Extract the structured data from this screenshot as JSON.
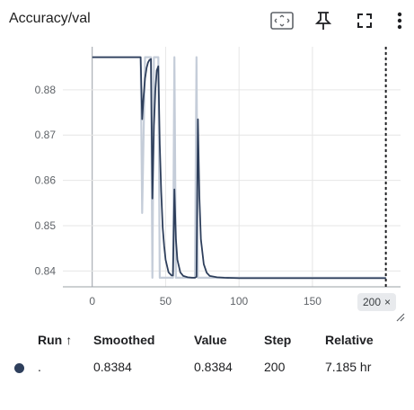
{
  "card": {
    "title": "Accuracy/val",
    "toolbar": {
      "fit_domain_icon": "fit-to-domain-icon",
      "pin_icon": "pin-icon",
      "fullscreen_icon": "fullscreen-icon",
      "more_icon": "more-vert-icon"
    }
  },
  "step_chip": {
    "label": "200",
    "close": "×"
  },
  "runs_table": {
    "headers": {
      "run": "Run",
      "sort_indicator": "↑",
      "smoothed": "Smoothed",
      "value": "Value",
      "step": "Step",
      "relative": "Relative"
    },
    "rows": [
      {
        "color": "#2e3f5c",
        "run": ".",
        "smoothed": "0.8384",
        "value": "0.8384",
        "step": "200",
        "relative": "7.185 hr"
      }
    ]
  },
  "chart_data": {
    "type": "line",
    "x_ticks": [
      0,
      50,
      100,
      150,
      200
    ],
    "y_ticks": [
      0.84,
      0.85,
      0.86,
      0.87,
      0.88
    ],
    "y_tick_labels": [
      "0.84",
      "0.85",
      "0.86",
      "0.87",
      "0.88"
    ],
    "xlim": [
      -20,
      210
    ],
    "ylim": [
      0.8365,
      0.8895
    ],
    "grid": true,
    "cursor_step": 200,
    "colors": {
      "smoothed": "#2e3f5c",
      "raw": "#c5cdd9"
    },
    "series": [
      {
        "role": "raw",
        "x": [
          0,
          32,
          33,
          34,
          36,
          40,
          41,
          42,
          43,
          45,
          46,
          47,
          48,
          50,
          55,
          56,
          57,
          58,
          60,
          70,
          71,
          72,
          73,
          75,
          200
        ],
        "y": [
          0.8872,
          0.8872,
          0.8872,
          0.8528,
          0.8872,
          0.8872,
          0.8385,
          0.8872,
          0.8872,
          0.8872,
          0.8385,
          0.8385,
          0.8385,
          0.8385,
          0.8385,
          0.8872,
          0.8385,
          0.8385,
          0.8385,
          0.8385,
          0.8872,
          0.8385,
          0.8385,
          0.8385,
          0.8385
        ]
      },
      {
        "role": "smoothed",
        "x": [
          0,
          32,
          33,
          34,
          35,
          36,
          37,
          38,
          39,
          40,
          41,
          42,
          43,
          44,
          45,
          46,
          47,
          48,
          49,
          50,
          52,
          54,
          55,
          56,
          57,
          58,
          60,
          62,
          65,
          68,
          70,
          71,
          72,
          73,
          74,
          76,
          78,
          80,
          85,
          90,
          100,
          200
        ],
        "y": [
          0.8872,
          0.8872,
          0.8872,
          0.8735,
          0.8785,
          0.8825,
          0.8848,
          0.886,
          0.8866,
          0.8868,
          0.856,
          0.872,
          0.88,
          0.8843,
          0.8852,
          0.868,
          0.8575,
          0.8495,
          0.8455,
          0.8425,
          0.8397,
          0.839,
          0.839,
          0.858,
          0.847,
          0.8425,
          0.8397,
          0.8389,
          0.8386,
          0.8385,
          0.8385,
          0.8387,
          0.8735,
          0.8565,
          0.847,
          0.8415,
          0.8396,
          0.8389,
          0.8386,
          0.8385,
          0.8384,
          0.8384
        ]
      }
    ]
  }
}
